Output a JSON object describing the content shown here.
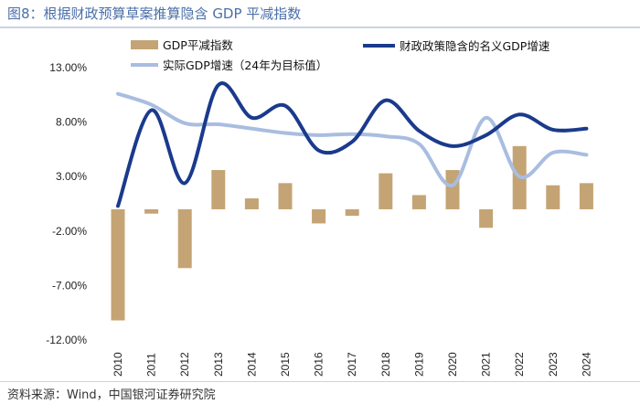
{
  "header": {
    "title": "图8：根据财政预算草案推算隐含 GDP 平减指数"
  },
  "footer": {
    "source": "资料来源：Wind，中国银河证券研究院"
  },
  "chart_data": {
    "type": "bar+line",
    "title": "图8：根据财政预算草案推算隐含 GDP 平减指数",
    "categories": [
      "2010",
      "2011",
      "2012",
      "2013",
      "2014",
      "2015",
      "2016",
      "2017",
      "2018",
      "2019",
      "2020",
      "2021",
      "2022",
      "2023",
      "2024"
    ],
    "ylim": [
      -12,
      13
    ],
    "yticks": [
      13,
      8,
      3,
      -2,
      -7,
      -12
    ],
    "ytick_labels": [
      "13.00%",
      "8.00%",
      "3.00%",
      "-2.00%",
      "-7.00%",
      "-12.00%"
    ],
    "xlabel": "",
    "ylabel": "",
    "series": [
      {
        "name": "GDP平减指数",
        "kind": "bar",
        "color": "#c4a474",
        "values": [
          -10.2,
          -0.4,
          -5.4,
          3.6,
          1.0,
          2.4,
          -1.3,
          -0.6,
          3.3,
          1.3,
          3.6,
          -1.7,
          5.8,
          2.2,
          2.4
        ]
      },
      {
        "name": "财政政策隐含的名义GDP增速",
        "kind": "line",
        "color": "#1a3a8c",
        "values": [
          0.3,
          9.1,
          2.4,
          11.4,
          8.4,
          9.5,
          5.4,
          6.2,
          10.0,
          7.2,
          5.8,
          6.8,
          8.7,
          7.3,
          7.4
        ]
      },
      {
        "name": "实际GDP增速（24年为目标值）",
        "kind": "line",
        "color": "#a9bde0",
        "values": [
          10.6,
          9.6,
          7.9,
          7.8,
          7.4,
          7.0,
          6.8,
          6.9,
          6.7,
          6.0,
          2.2,
          8.4,
          3.0,
          5.2,
          5.0
        ]
      }
    ],
    "legend": "top"
  }
}
